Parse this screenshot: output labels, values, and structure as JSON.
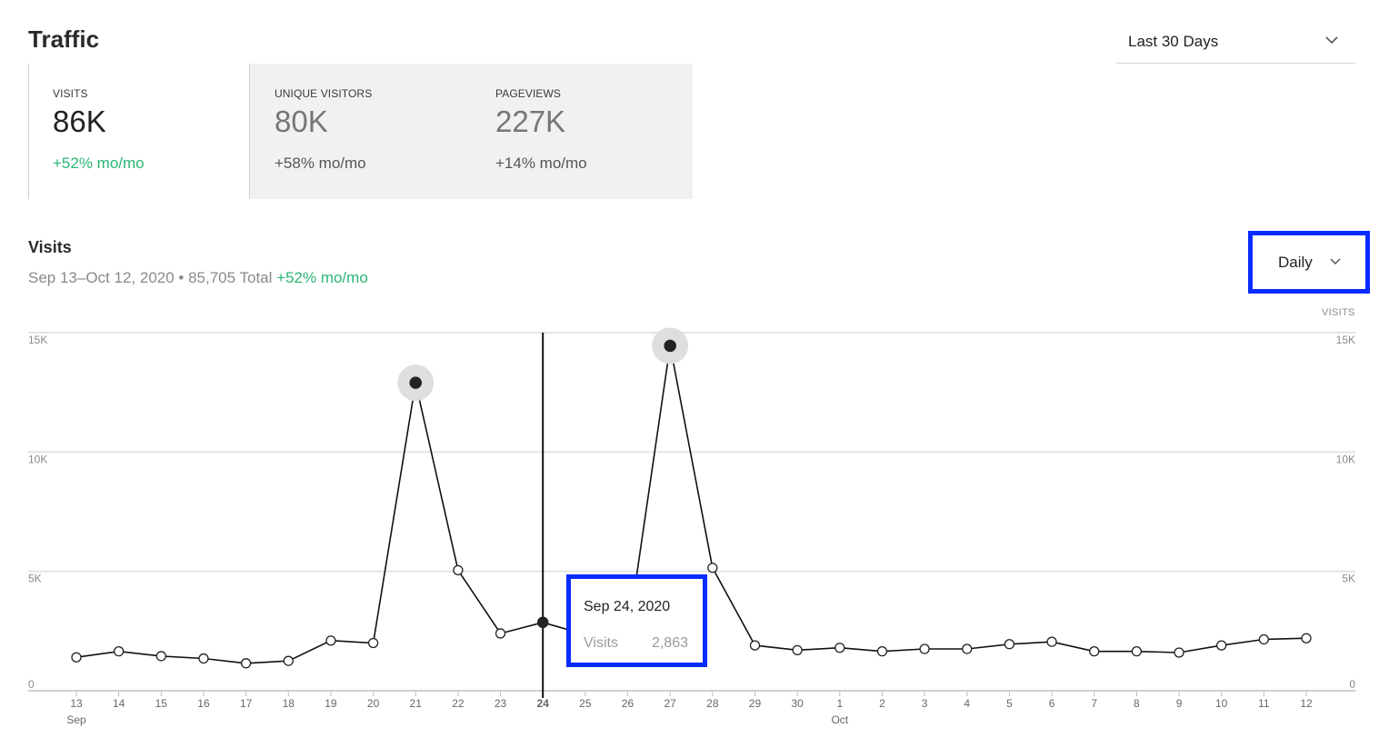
{
  "header": {
    "title": "Traffic",
    "range_select": {
      "value": "Last 30 Days",
      "icon": "chevron-down-icon"
    }
  },
  "stats": [
    {
      "label": "VISITS",
      "value": "86K",
      "change": "+52% mo/mo",
      "active": true
    },
    {
      "label": "UNIQUE VISITORS",
      "value": "80K",
      "change": "+58% mo/mo",
      "active": false
    },
    {
      "label": "PAGEVIEWS",
      "value": "227K",
      "change": "+14% mo/mo",
      "active": false
    }
  ],
  "chart_section": {
    "title": "Visits",
    "subtitle": "Sep 13–Oct 12, 2020 • 85,705 Total",
    "subtitle_change": "+52% mo/mo",
    "period_select": {
      "value": "Daily",
      "icon": "chevron-down-icon"
    },
    "axis_title": "VISITS"
  },
  "tooltip": {
    "date": "Sep 24, 2020",
    "label": "Visits",
    "value": "2,863"
  },
  "colors": {
    "accent_green": "#2bb673",
    "highlight_blue": "#0a2bff",
    "line": "#111111"
  },
  "chart_data": {
    "type": "line",
    "title": "",
    "xlabel": "",
    "ylabel": "VISITS",
    "ylim": [
      0,
      15000
    ],
    "yticks": [
      {
        "value": 0,
        "label": "0"
      },
      {
        "value": 5000,
        "label": "5K"
      },
      {
        "value": 10000,
        "label": "10K"
      },
      {
        "value": 15000,
        "label": "15K"
      }
    ],
    "x": [
      "13",
      "14",
      "15",
      "16",
      "17",
      "18",
      "19",
      "20",
      "21",
      "22",
      "23",
      "24",
      "25",
      "26",
      "27",
      "28",
      "29",
      "30",
      "1",
      "2",
      "3",
      "4",
      "5",
      "6",
      "7",
      "8",
      "9",
      "10",
      "11",
      "12"
    ],
    "month_labels": [
      {
        "at": "13",
        "label": "Sep"
      },
      {
        "at": "1",
        "label": "Oct"
      }
    ],
    "series": [
      {
        "values": [
          1400,
          1650,
          1450,
          1350,
          1150,
          1250,
          2100,
          2000,
          12900,
          5050,
          2400,
          2863,
          2350,
          2250,
          14450,
          5150,
          1900,
          1700,
          1800,
          1650,
          1750,
          1750,
          1950,
          2050,
          1650,
          1650,
          1600,
          1900,
          2150,
          2200
        ]
      }
    ],
    "highlighted": [
      "21",
      "27"
    ],
    "selected": "24",
    "grid": true,
    "legend": "none"
  }
}
